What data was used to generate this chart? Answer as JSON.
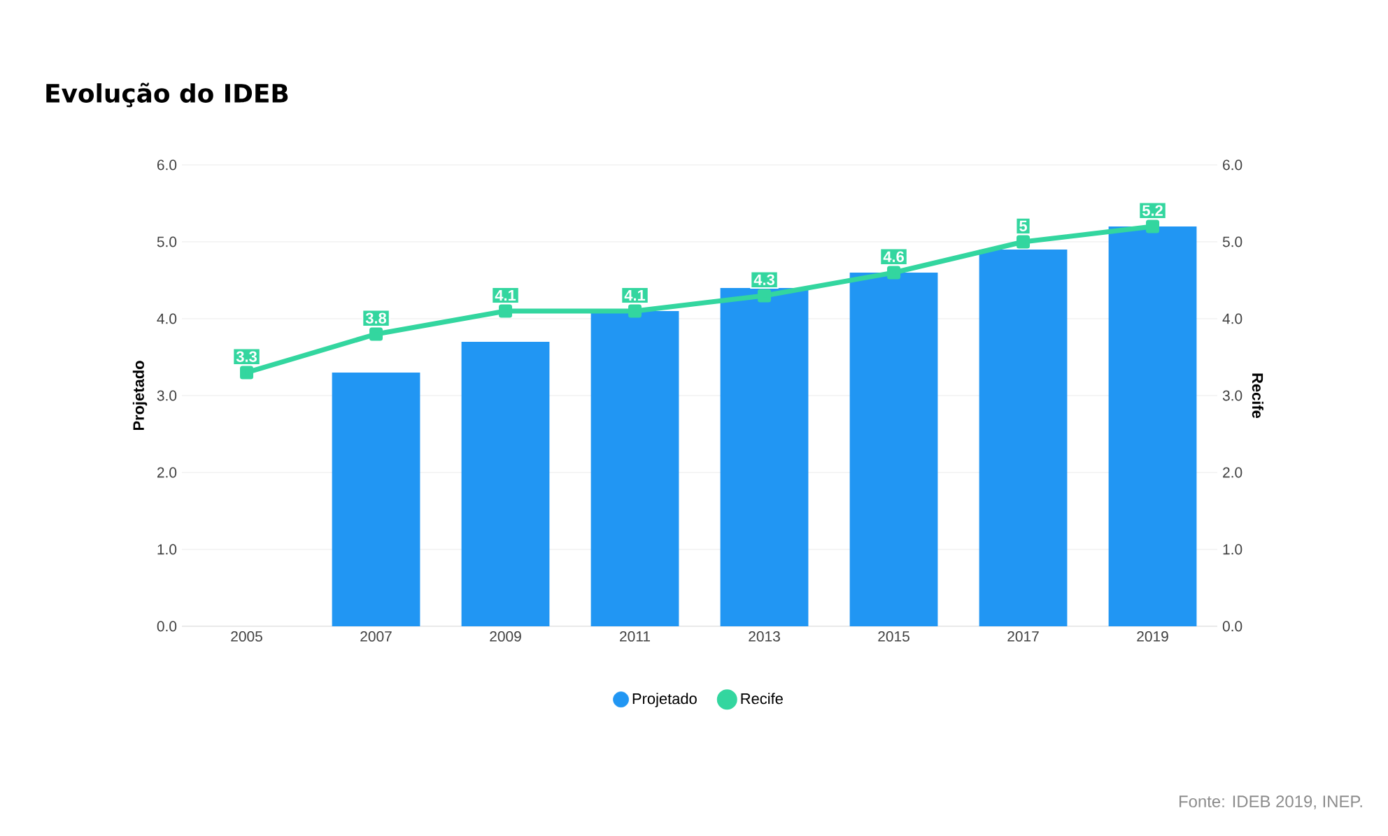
{
  "chart_data": {
    "type": "bar",
    "title": "Evolução do IDEB",
    "ylabel": "Projetado",
    "y2label": "Recife",
    "categories": [
      "2005",
      "2007",
      "2009",
      "2011",
      "2013",
      "2015",
      "2017",
      "2019"
    ],
    "series": [
      {
        "name": "Projetado",
        "color": "#2196f3",
        "values": [
          null,
          3.3,
          3.7,
          4.1,
          4.4,
          4.6,
          4.9,
          5.2
        ]
      },
      {
        "name": "Recife",
        "type": "line",
        "axis": "y2",
        "color": "#33d69f",
        "marker": "square",
        "values": [
          3.3,
          3.8,
          4.1,
          4.1,
          4.3,
          4.6,
          5,
          5.2
        ],
        "value_labels": [
          "3.3",
          "3.8",
          "4.1",
          "4.1",
          "4.3",
          "4.6",
          "5",
          "5.2"
        ]
      }
    ],
    "ylim": [
      0,
      6
    ],
    "yticks": [
      {
        "value": 0,
        "label": "0.0"
      },
      {
        "value": 1,
        "label": "1.0"
      },
      {
        "value": 2,
        "label": "2.0"
      },
      {
        "value": 3,
        "label": "3.0"
      },
      {
        "value": 4,
        "label": "4.0"
      },
      {
        "value": 5,
        "label": "5.0"
      },
      {
        "value": 6,
        "label": "6.0"
      }
    ],
    "y2lim": [
      0,
      6
    ],
    "y2ticks": [
      {
        "value": 0,
        "label": "0.0"
      },
      {
        "value": 1,
        "label": "1.0"
      },
      {
        "value": 2,
        "label": "2.0"
      },
      {
        "value": 3,
        "label": "3.0"
      },
      {
        "value": 4,
        "label": "4.0"
      },
      {
        "value": 5,
        "label": "5.0"
      },
      {
        "value": 6,
        "label": "6.0"
      }
    ],
    "grid": "y",
    "legend": "bottom",
    "annotations": [
      "Fonte: IDEB 2019, INEP."
    ]
  }
}
